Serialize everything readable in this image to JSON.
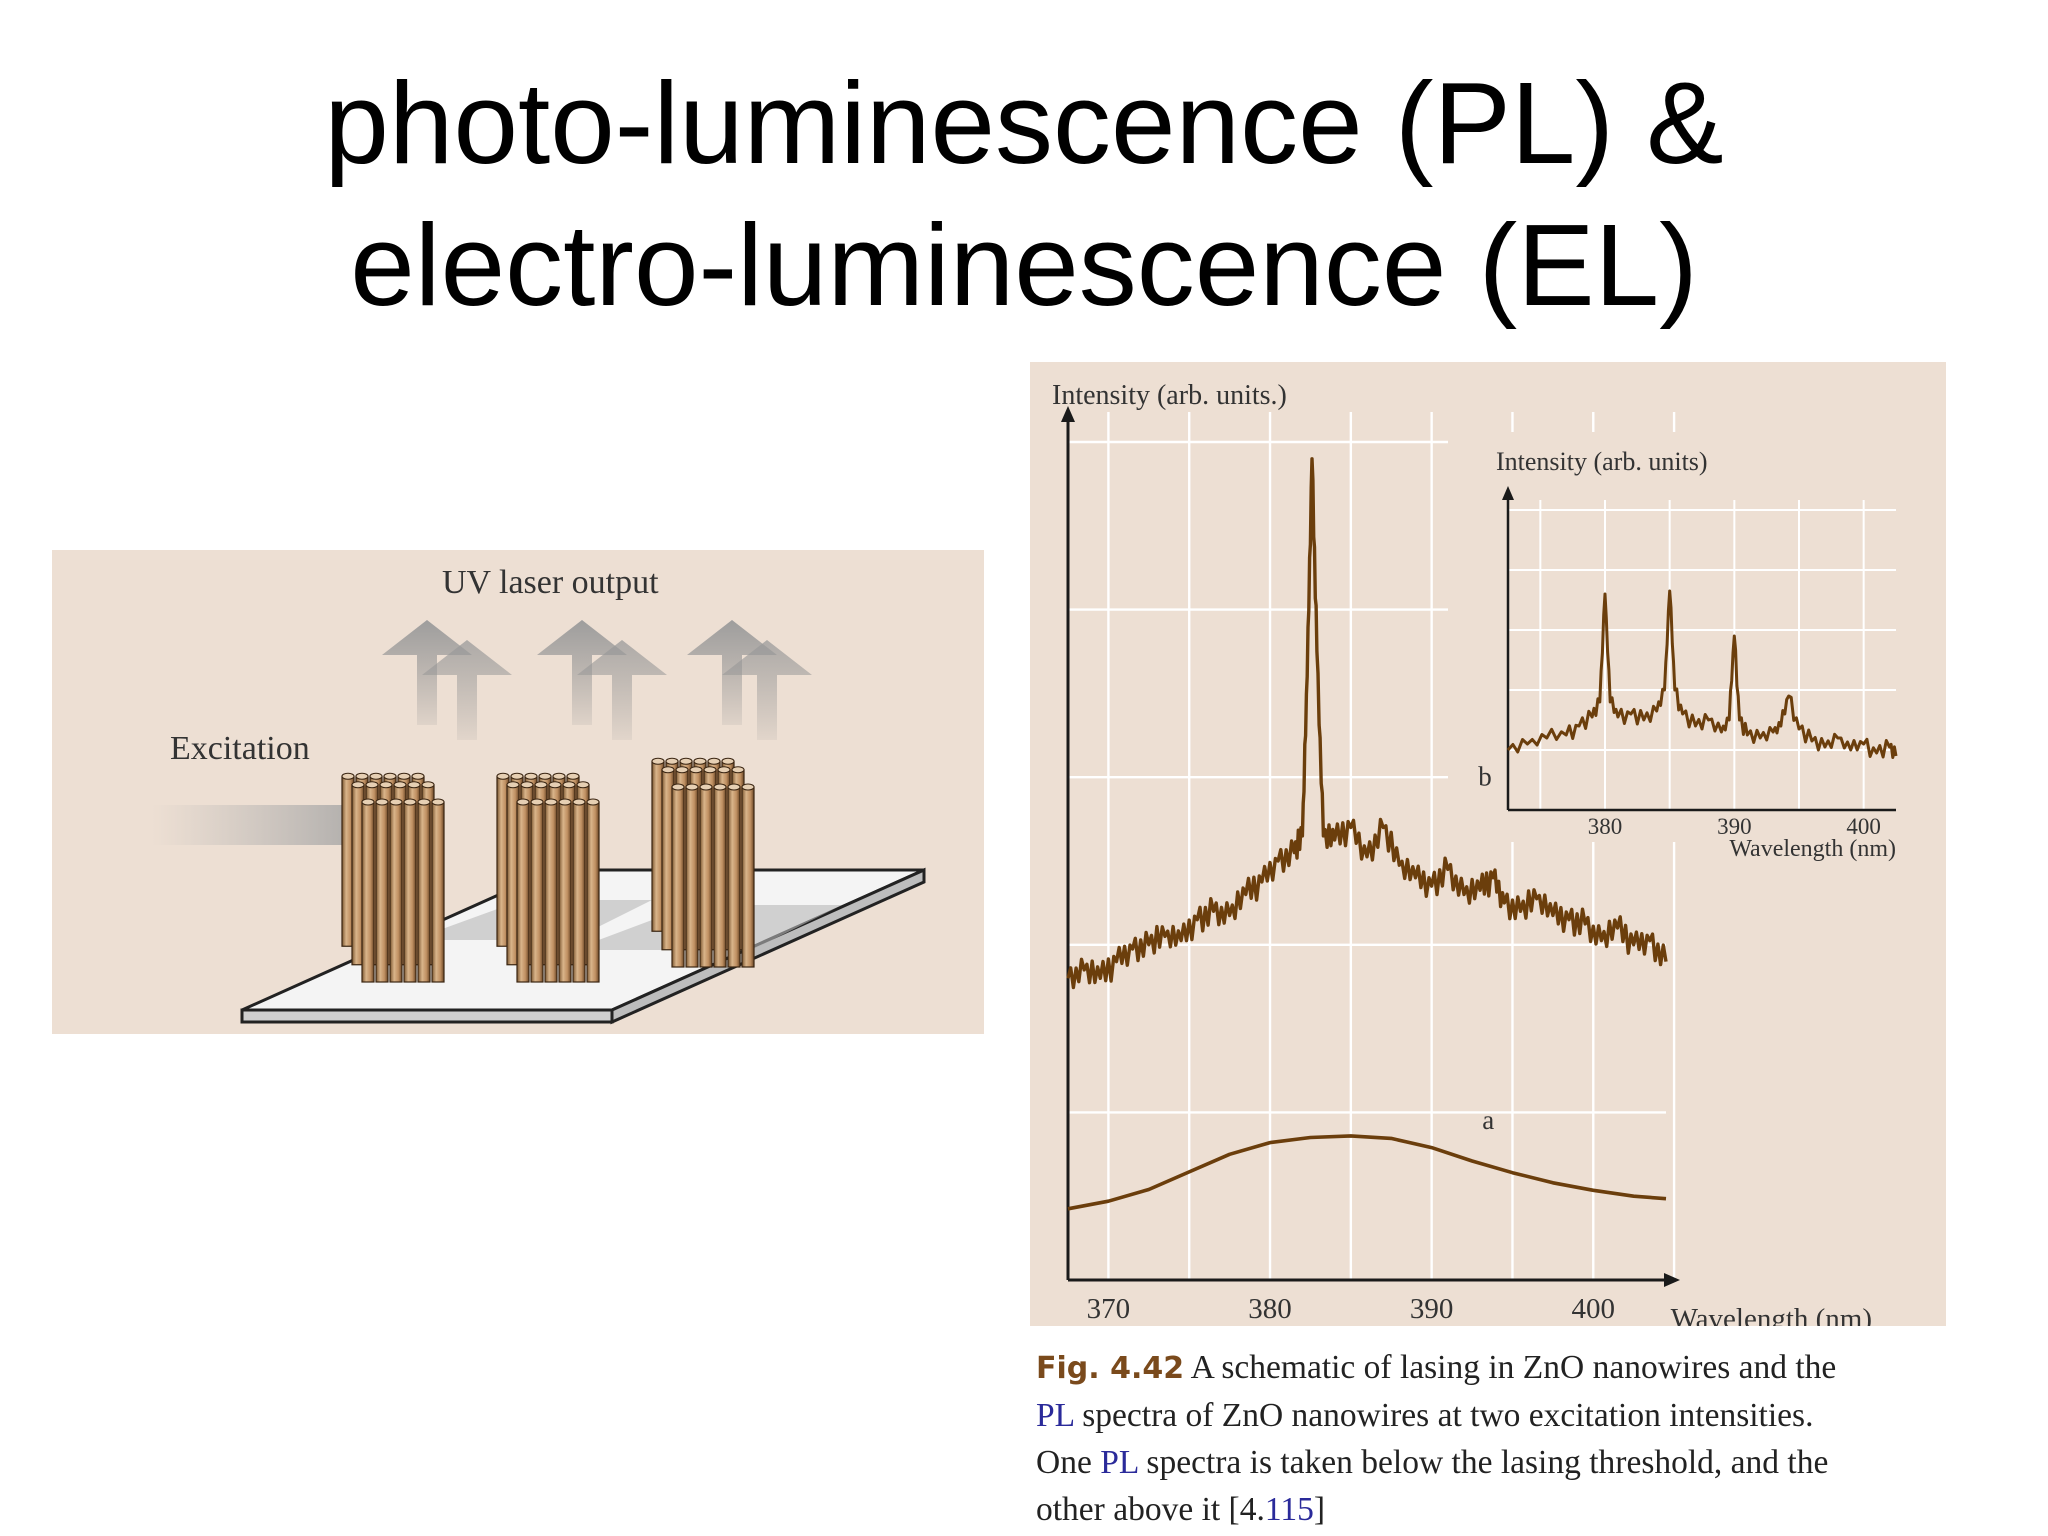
{
  "slide": {
    "title_line1": "photo-luminescence (PL) &",
    "title_line2": "electro-luminescence (EL)"
  },
  "schematic": {
    "laser_label": "UV laser output",
    "excitation_label": "Excitation"
  },
  "caption": {
    "fig_num": "Fig. 4.42",
    "line1_text": " A schematic of lasing in ZnO nanowires and the",
    "pl1": "PL",
    "line2_text": " spectra of ZnO nanowires at two excitation intensities.",
    "line3_pre": "One ",
    "pl2": "PL",
    "line3_post": " spectra is taken below the lasing threshold, and the",
    "line4_pre": "other above it [4.",
    "line4_ref": "115",
    "line4_post": "]"
  },
  "colors": {
    "panel_bg": "#eddfd3",
    "curve": "#6b3e0c",
    "grid": "#ffffff",
    "axis": "#1a1a1a",
    "nanowire": "#c69b6d"
  },
  "chart_data": [
    {
      "type": "line",
      "ylabel": "Intensity (arb. units.)",
      "xlabel": "Wavelength (nm)",
      "xlim": [
        367.5,
        404.5
      ],
      "ylim": [
        0,
        100
      ],
      "x_ticks": [
        370,
        380,
        390,
        400
      ],
      "x_tick_labels": [
        "370",
        "380",
        "390",
        "400"
      ],
      "grid": true,
      "series": [
        {
          "name": "a",
          "label_at": [
            393.5,
            18
          ],
          "x": [
            367.5,
            370,
            372.5,
            375,
            377.5,
            380,
            382.5,
            385,
            387.5,
            390,
            392.5,
            395,
            397.5,
            400,
            402.5,
            404.5
          ],
          "y": [
            8.5,
            9.4,
            10.8,
            12.9,
            15.0,
            16.4,
            17.0,
            17.2,
            16.9,
            15.8,
            14.2,
            12.8,
            11.6,
            10.7,
            10.0,
            9.7
          ]
        },
        {
          "name": "b",
          "label_at": [
            393.3,
            59
          ],
          "x": [
            367.5,
            368.5,
            369.5,
            370.5,
            371.5,
            372.5,
            373.5,
            374.5,
            375.5,
            376.5,
            377.5,
            378.5,
            379.5,
            380.5,
            381.5,
            382.0,
            382.3,
            382.6,
            382.9,
            383.3,
            384.0,
            385.0,
            386.0,
            387.0,
            388.0,
            389.0,
            390.0,
            391.0,
            392.0,
            393.0,
            393.8,
            394.5,
            395.5,
            396.5,
            397.5,
            398.5,
            399.5,
            400.5,
            401.5,
            402.5,
            403.5,
            404.5
          ],
          "y": [
            36.0,
            37.0,
            36.0,
            38.0,
            39.5,
            40.0,
            41.0,
            40.5,
            43.0,
            44.0,
            43.5,
            46.0,
            47.5,
            50.0,
            51.0,
            53.0,
            72.0,
            98.0,
            75.0,
            53.0,
            52.5,
            54.0,
            50.5,
            54.0,
            49.5,
            48.0,
            47.0,
            49.0,
            46.0,
            46.5,
            48.0,
            45.0,
            44.0,
            45.5,
            43.5,
            43.0,
            42.5,
            40.5,
            42.0,
            40.0,
            40.5,
            38.0
          ]
        }
      ]
    },
    {
      "type": "line",
      "ylabel": "Intensity (arb. units)",
      "xlabel": "Wavelength (nm)",
      "xlim": [
        372.5,
        402.5
      ],
      "ylim": [
        0,
        100
      ],
      "x_ticks": [
        380,
        390,
        400
      ],
      "x_tick_labels": [
        "380",
        "390",
        "400"
      ],
      "grid": true,
      "series": [
        {
          "x": [
            372.5,
            374,
            375.5,
            377,
            378,
            379,
            379.6,
            380,
            380.4,
            381,
            382,
            383,
            384,
            384.6,
            385,
            385.4,
            386,
            387,
            388,
            389,
            389.6,
            390,
            390.4,
            391,
            392,
            393,
            393.6,
            394.2,
            395,
            396,
            397,
            398,
            399,
            400,
            401,
            402,
            402.5
          ],
          "y": [
            20,
            22,
            24,
            25,
            28,
            31,
            36,
            72,
            36,
            31,
            32,
            30,
            33,
            40,
            73,
            40,
            32,
            28,
            30,
            26,
            30,
            58,
            30,
            25,
            24,
            26,
            28,
            38,
            27,
            23,
            21,
            24,
            20,
            22,
            19,
            21,
            18
          ]
        }
      ]
    }
  ]
}
